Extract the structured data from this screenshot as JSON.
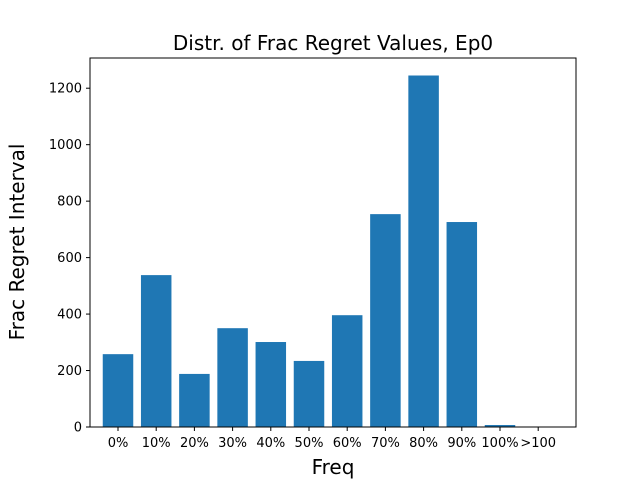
{
  "chart_data": {
    "type": "bar",
    "title": "Distr. of Frac Regret Values, Ep0",
    "xlabel": "Freq",
    "ylabel": "Frac Regret Interval",
    "categories": [
      "0%",
      "10%",
      "20%",
      "30%",
      "40%",
      "50%",
      "60%",
      "70%",
      "80%",
      "90%",
      "100%",
      ">100"
    ],
    "values": [
      258,
      538,
      188,
      350,
      301,
      234,
      396,
      754,
      1245,
      726,
      7,
      0
    ],
    "ylim": [
      0,
      1307
    ],
    "yticks": [
      0,
      200,
      400,
      600,
      800,
      1000,
      1200
    ],
    "ytick_labels": [
      "0",
      "200",
      "400",
      "600",
      "800",
      "1000",
      "1200"
    ],
    "grid": false,
    "bar_color": "#1f77b4"
  }
}
